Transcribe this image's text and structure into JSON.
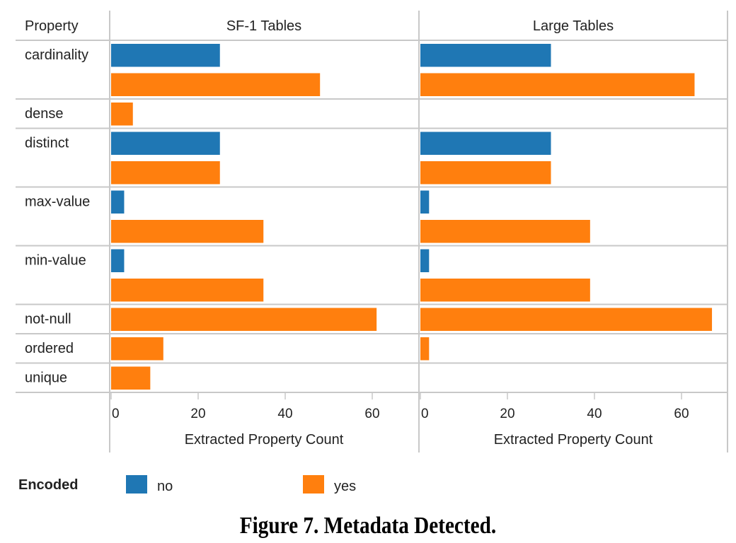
{
  "chart_data": {
    "type": "bar",
    "orientation": "horizontal",
    "row_header": "Property",
    "panels": [
      "SF-1 Tables",
      "Large Tables"
    ],
    "xlabel": "Extracted Property Count",
    "xticks": [
      0,
      20,
      40,
      60
    ],
    "xlim": [
      0,
      70
    ],
    "legend": {
      "title": "Encoded",
      "placement": "bottom-left",
      "entries": [
        {
          "name": "no",
          "color": "#1f77b4"
        },
        {
          "name": "yes",
          "color": "#ff7f0e"
        }
      ]
    },
    "properties": [
      {
        "name": "cardinality",
        "series": [
          "no",
          "yes"
        ],
        "values": {
          "SF-1 Tables": [
            25,
            48
          ],
          "Large Tables": [
            30,
            63
          ]
        }
      },
      {
        "name": "dense",
        "series": [
          "yes"
        ],
        "values": {
          "SF-1 Tables": [
            5
          ],
          "Large Tables": [
            0
          ]
        }
      },
      {
        "name": "distinct",
        "series": [
          "no",
          "yes"
        ],
        "values": {
          "SF-1 Tables": [
            25,
            25
          ],
          "Large Tables": [
            30,
            30
          ]
        }
      },
      {
        "name": "max-value",
        "series": [
          "no",
          "yes"
        ],
        "values": {
          "SF-1 Tables": [
            3,
            35
          ],
          "Large Tables": [
            2,
            39
          ]
        }
      },
      {
        "name": "min-value",
        "series": [
          "no",
          "yes"
        ],
        "values": {
          "SF-1 Tables": [
            3,
            35
          ],
          "Large Tables": [
            2,
            39
          ]
        }
      },
      {
        "name": "not-null",
        "series": [
          "yes"
        ],
        "values": {
          "SF-1 Tables": [
            61
          ],
          "Large Tables": [
            67
          ]
        }
      },
      {
        "name": "ordered",
        "series": [
          "yes"
        ],
        "values": {
          "SF-1 Tables": [
            12
          ],
          "Large Tables": [
            2
          ]
        }
      },
      {
        "name": "unique",
        "series": [
          "yes"
        ],
        "values": {
          "SF-1 Tables": [
            9
          ],
          "Large Tables": [
            0
          ]
        }
      }
    ]
  },
  "caption": "Figure 7. Metadata Detected."
}
